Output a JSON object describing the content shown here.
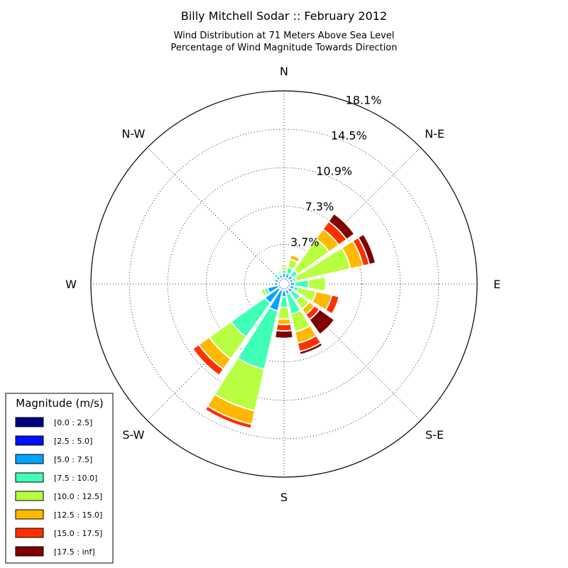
{
  "chart_data": {
    "type": "windrose",
    "title": "Billy Mitchell Sodar :: February 2012",
    "subtitle_lines": [
      "Wind Distribution at 71 Meters Above Sea Level",
      "Percentage of Wind Magnitude Towards Direction"
    ],
    "directions": [
      "N",
      "N-E",
      "E",
      "S-E",
      "S",
      "S-W",
      "W",
      "N-W"
    ],
    "radial_ticks": [
      "3.7%",
      "7.3%",
      "10.9%",
      "14.5%",
      "18.1%"
    ],
    "radial_tick_values": [
      3.7,
      7.3,
      10.9,
      14.5,
      18.1
    ],
    "rmax": 18.1,
    "legend_title": "Magnitude (m/s)",
    "bins": [
      "[0.0 : 2.5]",
      "[2.5 : 5.0]",
      "[5.0 : 7.5]",
      "[7.5 : 10.0]",
      "[10.0 : 12.5]",
      "[12.5 : 15.0]",
      "[15.0 : 17.5]",
      "[17.5 : inf]"
    ],
    "colors": [
      "#00007f",
      "#0010ff",
      "#00a4ff",
      "#40ffb7",
      "#b7ff40",
      "#ffb900",
      "#ff3000",
      "#7f0000"
    ],
    "sectors": [
      {
        "angle": 0,
        "cum": [
          0.3,
          0.6,
          1.0,
          1.3,
          1.6,
          1.8
        ]
      },
      {
        "angle": 22.5,
        "cum": [
          0.3,
          0.6,
          1.0,
          1.6,
          2.4,
          2.8
        ]
      },
      {
        "angle": 45,
        "cum": [
          0.3,
          0.6,
          1.0,
          1.6,
          5.2,
          6.3,
          7.2,
          8.1
        ]
      },
      {
        "angle": 67.5,
        "cum": [
          0.3,
          0.6,
          0.9,
          1.2,
          6.4,
          7.6,
          8.2,
          8.8
        ]
      },
      {
        "angle": 90,
        "cum": [
          0.3,
          0.6,
          1.0,
          2.3,
          3.9
        ]
      },
      {
        "angle": 112.5,
        "cum": [
          0.3,
          0.6,
          1.0,
          1.4,
          3.1,
          4.6,
          5.3
        ]
      },
      {
        "angle": 135,
        "cum": [
          0.3,
          0.6,
          1.0,
          1.9,
          2.9,
          3.5,
          4.1,
          5.8
        ]
      },
      {
        "angle": 157.5,
        "cum": [
          0.3,
          0.6,
          1.0,
          2.9,
          4.6,
          5.7,
          6.5,
          6.8
        ]
      },
      {
        "angle": 180,
        "cum": [
          0.3,
          0.6,
          1.2,
          2.2,
          3.3,
          3.8,
          4.4,
          5.1
        ]
      },
      {
        "angle": 202.5,
        "cum": [
          0.3,
          0.6,
          2.6,
          8.2,
          12.2,
          13.5,
          13.9
        ]
      },
      {
        "angle": 225,
        "cum": [
          0.3,
          0.6,
          2.2,
          6.1,
          8.6,
          9.8,
          10.5
        ]
      },
      {
        "angle": 247.5,
        "cum": [
          0.3,
          0.6,
          1.6,
          1.9,
          2.2
        ]
      },
      {
        "angle": 270,
        "cum": [
          0.3,
          0.6,
          0.9
        ]
      },
      {
        "angle": 292.5,
        "cum": [
          0.3,
          0.6,
          0.9,
          1.1
        ]
      },
      {
        "angle": 315,
        "cum": [
          0.3,
          0.6,
          0.9,
          1.2
        ]
      },
      {
        "angle": 337.5,
        "cum": [
          0.3,
          0.6,
          0.9,
          1.1,
          1.3
        ]
      }
    ]
  }
}
